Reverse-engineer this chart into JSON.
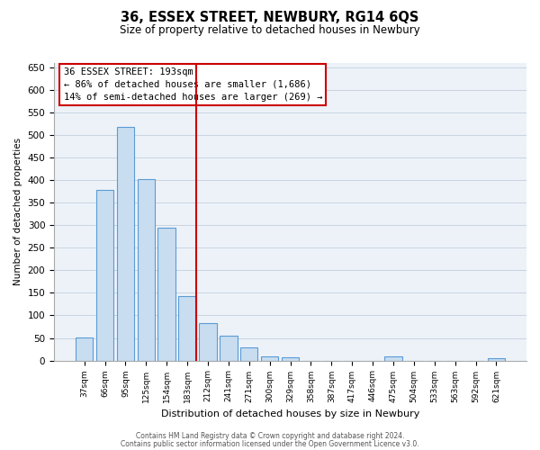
{
  "title": "36, ESSEX STREET, NEWBURY, RG14 6QS",
  "subtitle": "Size of property relative to detached houses in Newbury",
  "xlabel": "Distribution of detached houses by size in Newbury",
  "ylabel": "Number of detached properties",
  "bar_labels": [
    "37sqm",
    "66sqm",
    "95sqm",
    "125sqm",
    "154sqm",
    "183sqm",
    "212sqm",
    "241sqm",
    "271sqm",
    "300sqm",
    "329sqm",
    "358sqm",
    "387sqm",
    "417sqm",
    "446sqm",
    "475sqm",
    "504sqm",
    "533sqm",
    "563sqm",
    "592sqm",
    "621sqm"
  ],
  "bar_values": [
    52,
    378,
    519,
    403,
    295,
    143,
    82,
    55,
    30,
    10,
    8,
    0,
    0,
    0,
    0,
    10,
    0,
    0,
    0,
    0,
    5
  ],
  "bar_color": "#c9ddf0",
  "bar_edge_color": "#5b9bd5",
  "grid_color": "#c8d4e0",
  "annotation_box_text": "36 ESSEX STREET: 193sqm\n← 86% of detached houses are smaller (1,686)\n14% of semi-detached houses are larger (269) →",
  "annotation_box_edge_color": "#cc0000",
  "annotation_box_text_color": "#000000",
  "property_line_color": "#cc0000",
  "property_line_x": 5.45,
  "ylim": [
    0,
    660
  ],
  "yticks": [
    0,
    50,
    100,
    150,
    200,
    250,
    300,
    350,
    400,
    450,
    500,
    550,
    600,
    650
  ],
  "footer_line1": "Contains HM Land Registry data © Crown copyright and database right 2024.",
  "footer_line2": "Contains public sector information licensed under the Open Government Licence v3.0.",
  "background_color": "#ffffff",
  "plot_bg_color": "#edf2f9"
}
